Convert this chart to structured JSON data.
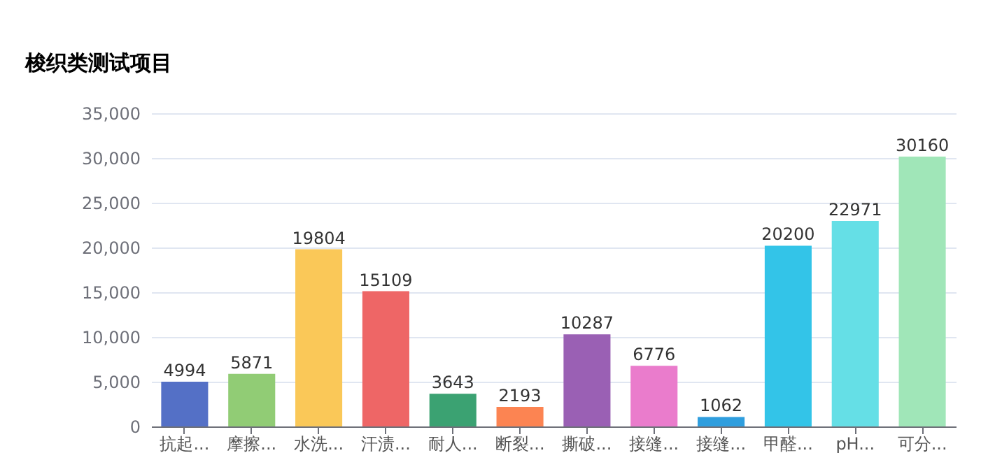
{
  "chart_data": {
    "type": "bar",
    "title": "梭织类测试项目",
    "categories": [
      "抗起...",
      "摩擦...",
      "水洗...",
      "汗渍...",
      "耐人...",
      "断裂...",
      "撕破...",
      "接缝...",
      "接缝...",
      "甲醛...",
      "pH...",
      "可分..."
    ],
    "values": [
      4994,
      5871,
      19804,
      15109,
      3643,
      2193,
      10287,
      6776,
      1062,
      20200,
      22971,
      30160
    ],
    "colors": [
      "#5470c6",
      "#91cc75",
      "#fac858",
      "#ee6666",
      "#3ba272",
      "#fc8452",
      "#9a60b4",
      "#ea7ccc",
      "#2f9ede",
      "#33c4e8",
      "#65dfe6",
      "#a0e6b8"
    ],
    "ylim": [
      0,
      35000
    ],
    "yticks": [
      0,
      {
        "value": 5000,
        "label": "5,000"
      },
      {
        "value": 10000,
        "label": "10,000"
      },
      {
        "value": 15000,
        "label": "15,000"
      },
      {
        "value": 20000,
        "label": "20,000"
      },
      {
        "value": 25000,
        "label": "25,000"
      },
      {
        "value": 30000,
        "label": "30,000"
      },
      {
        "value": 35000,
        "label": "35,000"
      }
    ],
    "grid": "y",
    "data_labels": true
  }
}
